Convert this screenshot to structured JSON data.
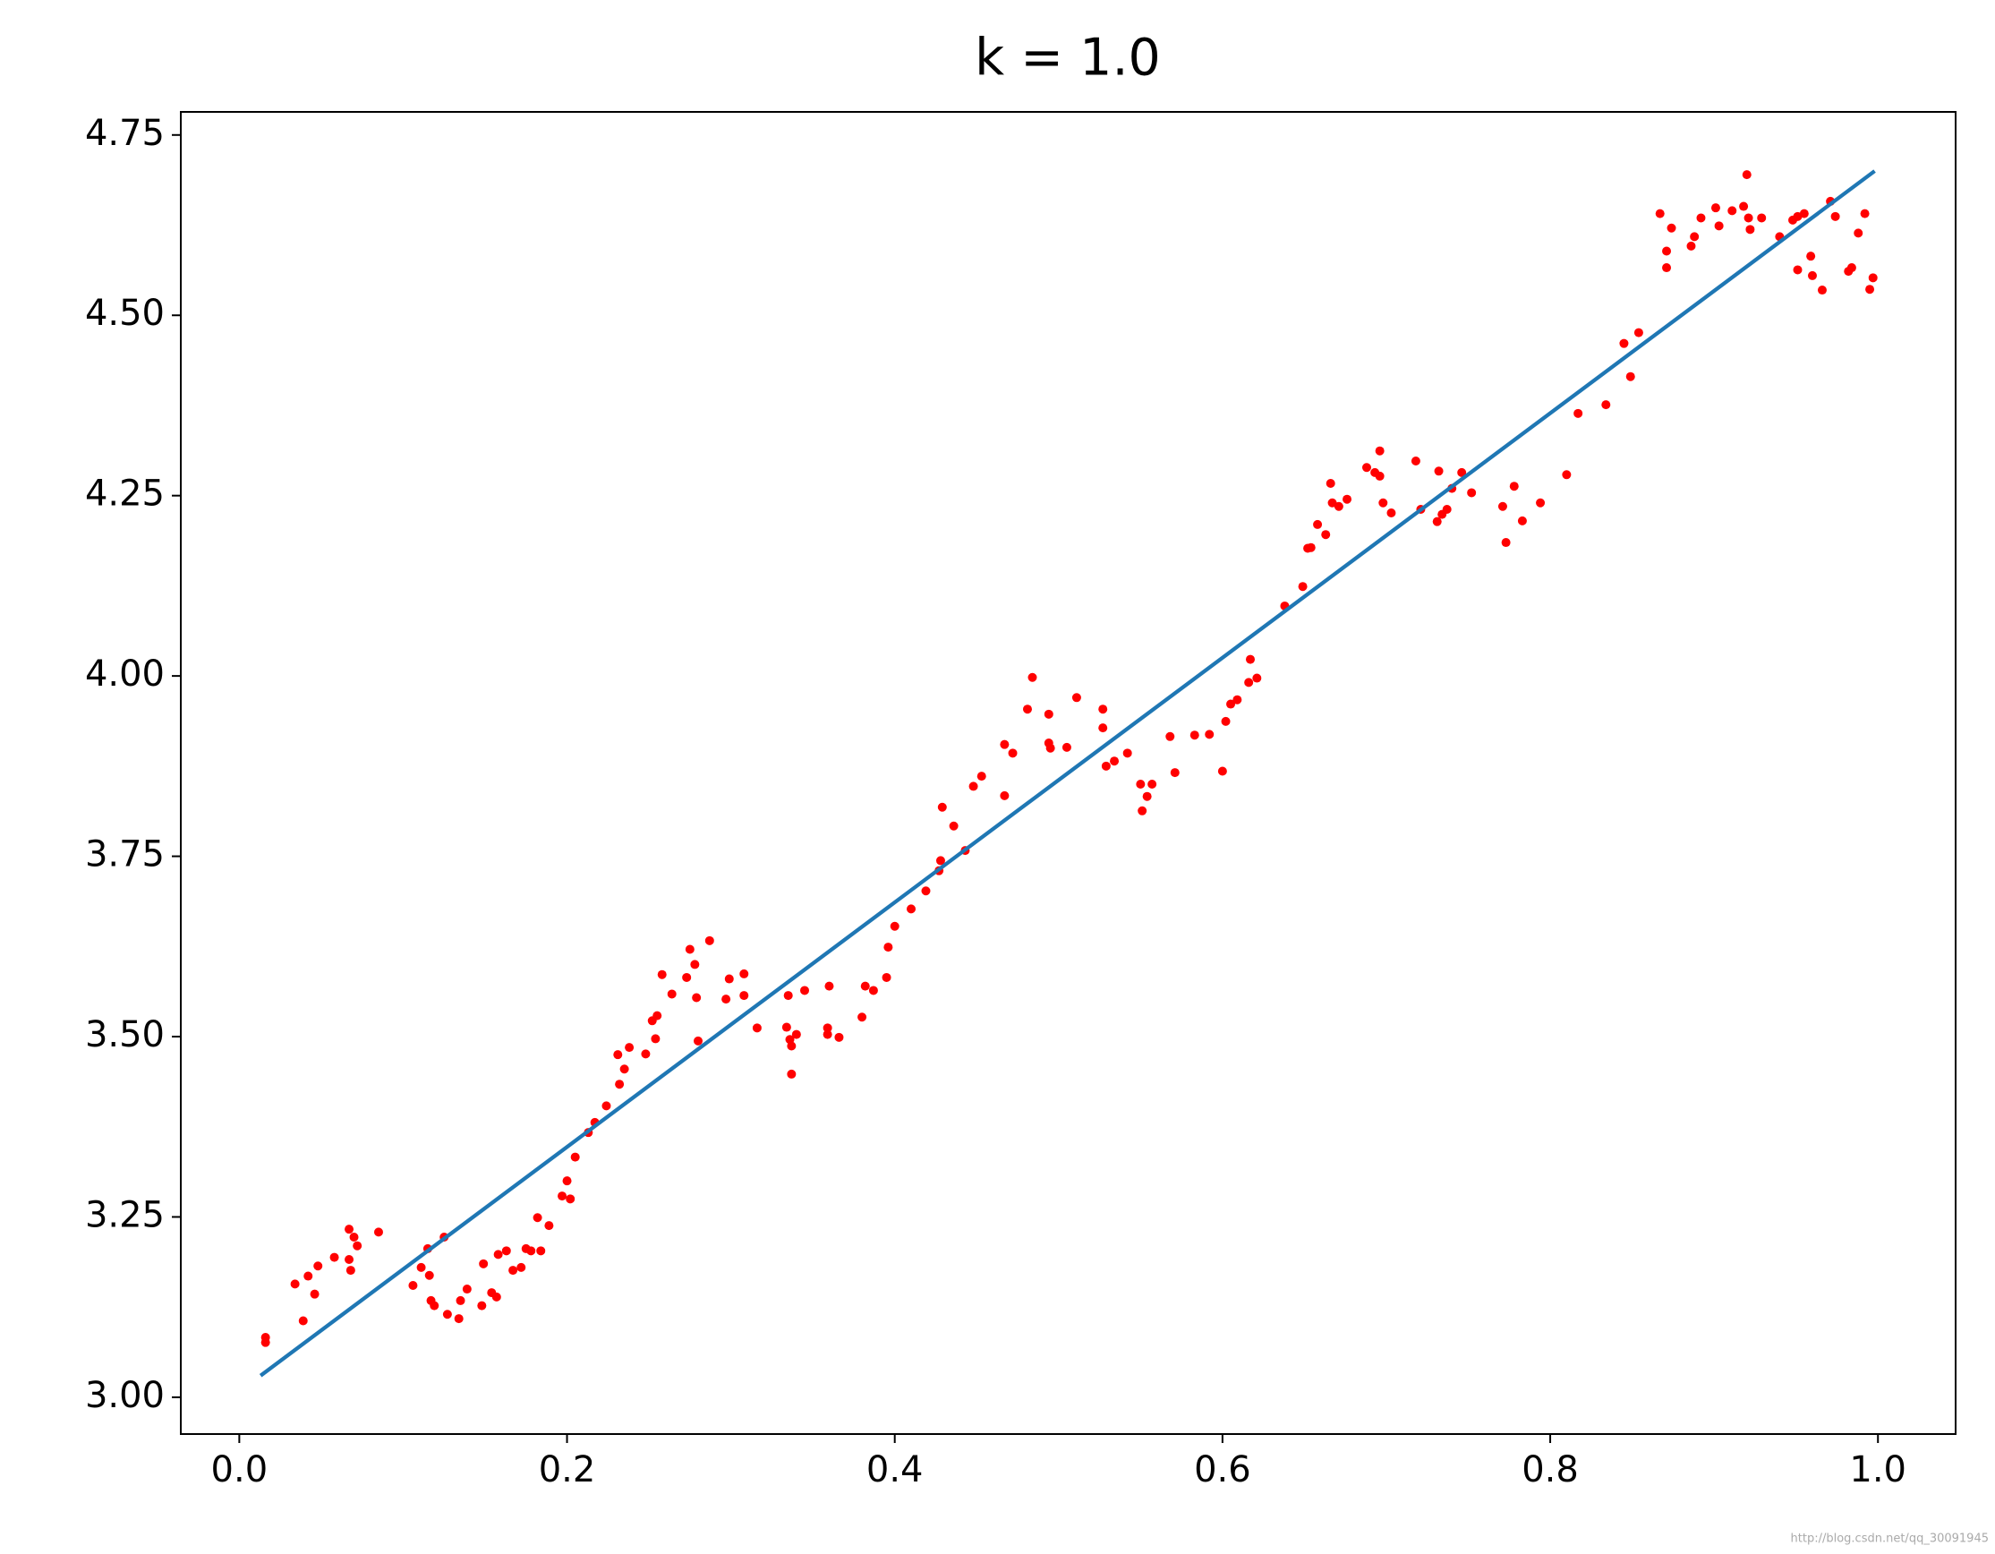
{
  "chart_data": {
    "type": "scatter",
    "title": "k = 1.0",
    "watermark": "http://blog.csdn.net/qq_30091945",
    "xlim": [
      -0.0357,
      1.0474
    ],
    "ylim": [
      2.949,
      4.782
    ],
    "xticks": [
      {
        "value": 0,
        "label": "0.0"
      },
      {
        "value": 0.2,
        "label": "0.2"
      },
      {
        "value": 0.4,
        "label": "0.4"
      },
      {
        "value": 0.6,
        "label": "0.6"
      },
      {
        "value": 0.8,
        "label": "0.8"
      },
      {
        "value": 1,
        "label": "1.0"
      }
    ],
    "yticks": [
      {
        "value": 3,
        "label": "3.00"
      },
      {
        "value": 3.25,
        "label": "3.25"
      },
      {
        "value": 3.5,
        "label": "3.50"
      },
      {
        "value": 3.75,
        "label": "3.75"
      },
      {
        "value": 4,
        "label": "4.00"
      },
      {
        "value": 4.25,
        "label": "4.25"
      },
      {
        "value": 4.5,
        "label": "4.50"
      },
      {
        "value": 4.75,
        "label": "4.75"
      }
    ],
    "grid": false,
    "series": [
      {
        "type": "scatter",
        "color": "#ff0000",
        "x": [
          0.016,
          0.016,
          0.034,
          0.039,
          0.042,
          0.046,
          0.048,
          0.058,
          0.067,
          0.067,
          0.068,
          0.07,
          0.072,
          0.085,
          0.106,
          0.111,
          0.115,
          0.116,
          0.117,
          0.119,
          0.125,
          0.127,
          0.134,
          0.135,
          0.139,
          0.148,
          0.149,
          0.154,
          0.157,
          0.158,
          0.163,
          0.167,
          0.172,
          0.175,
          0.178,
          0.182,
          0.184,
          0.189,
          0.197,
          0.2,
          0.202,
          0.205,
          0.213,
          0.217,
          0.224,
          0.231,
          0.232,
          0.235,
          0.238,
          0.248,
          0.252,
          0.254,
          0.255,
          0.258,
          0.264,
          0.273,
          0.275,
          0.278,
          0.279,
          0.28,
          0.287,
          0.297,
          0.299,
          0.308,
          0.308,
          0.316,
          0.334,
          0.335,
          0.336,
          0.337,
          0.337,
          0.34,
          0.345,
          0.359,
          0.36,
          0.359,
          0.366,
          0.38,
          0.382,
          0.387,
          0.395,
          0.396,
          0.4,
          0.41,
          0.419,
          0.427,
          0.428,
          0.429,
          0.436,
          0.443,
          0.448,
          0.453,
          0.467,
          0.467,
          0.472,
          0.481,
          0.484,
          0.494,
          0.494,
          0.495,
          0.505,
          0.511,
          0.527,
          0.527,
          0.529,
          0.534,
          0.542,
          0.55,
          0.551,
          0.554,
          0.557,
          0.568,
          0.571,
          0.583,
          0.592,
          0.6,
          0.602,
          0.605,
          0.609,
          0.616,
          0.617,
          0.621,
          0.638,
          0.649,
          0.652,
          0.654,
          0.658,
          0.663,
          0.666,
          0.667,
          0.671,
          0.676,
          0.688,
          0.693,
          0.696,
          0.696,
          0.698,
          0.703,
          0.718,
          0.721,
          0.732,
          0.731,
          0.734,
          0.737,
          0.74,
          0.746,
          0.752,
          0.771,
          0.773,
          0.778,
          0.783,
          0.794,
          0.81,
          0.817,
          0.834,
          0.845,
          0.849,
          0.854,
          0.867,
          0.871,
          0.871,
          0.874,
          0.886,
          0.888,
          0.892,
          0.901,
          0.903,
          0.911,
          0.918,
          0.92,
          0.921,
          0.922,
          0.929,
          0.94,
          0.948,
          0.951,
          0.951,
          0.955,
          0.959,
          0.96,
          0.966,
          0.971,
          0.974,
          0.982,
          0.984,
          0.988,
          0.992,
          0.995,
          0.997
        ],
        "values": [
          3.083,
          3.076,
          3.157,
          3.106,
          3.168,
          3.143,
          3.182,
          3.194,
          3.233,
          3.191,
          3.176,
          3.222,
          3.21,
          3.229,
          3.155,
          3.18,
          3.206,
          3.169,
          3.134,
          3.127,
          3.222,
          3.115,
          3.109,
          3.134,
          3.15,
          3.127,
          3.185,
          3.145,
          3.139,
          3.198,
          3.203,
          3.176,
          3.18,
          3.206,
          3.203,
          3.249,
          3.203,
          3.238,
          3.279,
          3.3,
          3.275,
          3.333,
          3.367,
          3.381,
          3.404,
          3.475,
          3.434,
          3.455,
          3.485,
          3.476,
          3.522,
          3.497,
          3.529,
          3.586,
          3.559,
          3.582,
          3.621,
          3.6,
          3.554,
          3.494,
          3.633,
          3.552,
          3.58,
          3.587,
          3.557,
          3.512,
          3.513,
          3.557,
          3.496,
          3.487,
          3.448,
          3.503,
          3.564,
          3.512,
          3.57,
          3.503,
          3.499,
          3.527,
          3.57,
          3.564,
          3.582,
          3.624,
          3.653,
          3.677,
          3.702,
          3.73,
          3.744,
          3.818,
          3.792,
          3.758,
          3.847,
          3.861,
          3.834,
          3.905,
          3.893,
          3.954,
          3.998,
          3.947,
          3.907,
          3.9,
          3.901,
          3.97,
          3.954,
          3.928,
          3.875,
          3.882,
          3.893,
          3.85,
          3.813,
          3.833,
          3.85,
          3.916,
          3.866,
          3.918,
          3.919,
          3.868,
          3.937,
          3.961,
          3.967,
          3.991,
          4.023,
          3.997,
          4.097,
          4.124,
          4.177,
          4.178,
          4.21,
          4.196,
          4.267,
          4.24,
          4.235,
          4.245,
          4.289,
          4.282,
          4.312,
          4.277,
          4.24,
          4.226,
          4.298,
          4.231,
          4.284,
          4.214,
          4.224,
          4.231,
          4.26,
          4.282,
          4.254,
          4.235,
          4.185,
          4.263,
          4.215,
          4.24,
          4.279,
          4.364,
          4.376,
          4.461,
          4.415,
          4.476,
          4.641,
          4.589,
          4.566,
          4.621,
          4.596,
          4.609,
          4.635,
          4.649,
          4.624,
          4.645,
          4.651,
          4.695,
          4.635,
          4.619,
          4.635,
          4.609,
          4.632,
          4.637,
          4.563,
          4.641,
          4.582,
          4.555,
          4.535,
          4.658,
          4.637,
          4.561,
          4.566,
          4.614,
          4.641,
          4.536,
          4.552
        ]
      },
      {
        "type": "line",
        "color": "#1f77b4",
        "x": [
          0.013,
          0.998
        ],
        "values": [
          3.03,
          4.7
        ]
      }
    ]
  }
}
